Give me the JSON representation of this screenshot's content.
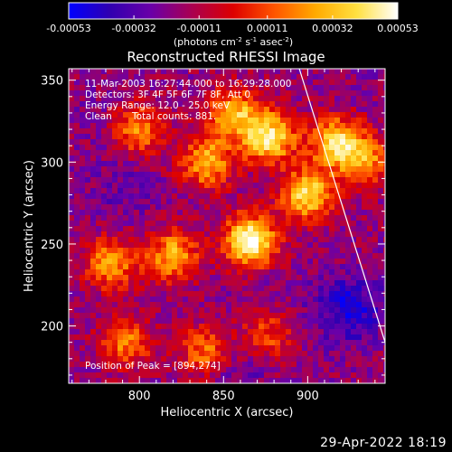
{
  "colors": {
    "background": "#000000",
    "axis": "#ffffff",
    "colormap": [
      "#0000ff",
      "#3000b0",
      "#6a00a8",
      "#aa0050",
      "#dd0000",
      "#ff5500",
      "#ffaa00",
      "#ffe040",
      "#ffffff"
    ]
  },
  "colorbar": {
    "tick_labels": [
      "-0.00053",
      "-0.00032",
      "-0.00011",
      "0.00011",
      "0.00032",
      "0.00053"
    ],
    "range": [
      -0.00053,
      0.00053
    ]
  },
  "chart_data": {
    "type": "heatmap",
    "title": "Reconstructed RHESSI Image",
    "xlabel": "Heliocentric X (arcsec)",
    "ylabel": "Heliocentric Y (arcsec)",
    "xlim": [
      758,
      946
    ],
    "ylim": [
      165,
      357
    ],
    "x_ticks": [
      800,
      850,
      900
    ],
    "y_ticks": [
      200,
      250,
      300,
      350
    ],
    "colorbar_label_pre": "(photons cm",
    "colorbar_label_sup1": "-2",
    "colorbar_label_mid": " s",
    "colorbar_label_sup2": "-1",
    "colorbar_label_post": " asec",
    "colorbar_label_sup3": "-2",
    "colorbar_label_end": ")",
    "value_range": [
      -0.00053,
      0.00053
    ],
    "sources": [
      {
        "x": 866,
        "y": 252,
        "peak": 0.00053
      },
      {
        "x": 877,
        "y": 315,
        "peak": 0.00044
      },
      {
        "x": 900,
        "y": 280,
        "peak": 0.0004
      },
      {
        "x": 917,
        "y": 312,
        "peak": 0.00038
      },
      {
        "x": 840,
        "y": 300,
        "peak": 0.0003
      },
      {
        "x": 820,
        "y": 243,
        "peak": 0.00028
      },
      {
        "x": 783,
        "y": 238,
        "peak": 0.00024
      },
      {
        "x": 800,
        "y": 320,
        "peak": 0.00022
      },
      {
        "x": 856,
        "y": 330,
        "peak": 0.0003
      },
      {
        "x": 792,
        "y": 190,
        "peak": 0.00018
      },
      {
        "x": 839,
        "y": 185,
        "peak": 0.00016
      },
      {
        "x": 935,
        "y": 300,
        "peak": 0.0002
      },
      {
        "x": 876,
        "y": 195,
        "peak": 0.00012
      }
    ],
    "negative_regions": [
      {
        "x": 790,
        "y": 285,
        "depth": -0.0003
      },
      {
        "x": 925,
        "y": 210,
        "depth": -0.00053
      },
      {
        "x": 880,
        "y": 215,
        "depth": -0.00025
      },
      {
        "x": 860,
        "y": 170,
        "depth": -0.0003
      },
      {
        "x": 780,
        "y": 330,
        "depth": -0.00022
      },
      {
        "x": 940,
        "y": 350,
        "depth": -0.0002
      }
    ],
    "limb_line": [
      [
        895,
        357
      ],
      [
        946,
        190
      ]
    ],
    "annotations": {
      "time_range": "11-Mar-2003 16:27:44.000 to 16:29:28.000",
      "detectors": "Detectors: 3F 4F 5F 6F 7F 8F, Att 0",
      "energy": "Energy Range: 12.0 - 25.0 keV",
      "clean_label": "Clean",
      "total_counts": "Total counts: 881.",
      "peak_position": "Position of Peak = [894,274]"
    }
  },
  "footer": {
    "date": "29-Apr-2022 18:19"
  }
}
